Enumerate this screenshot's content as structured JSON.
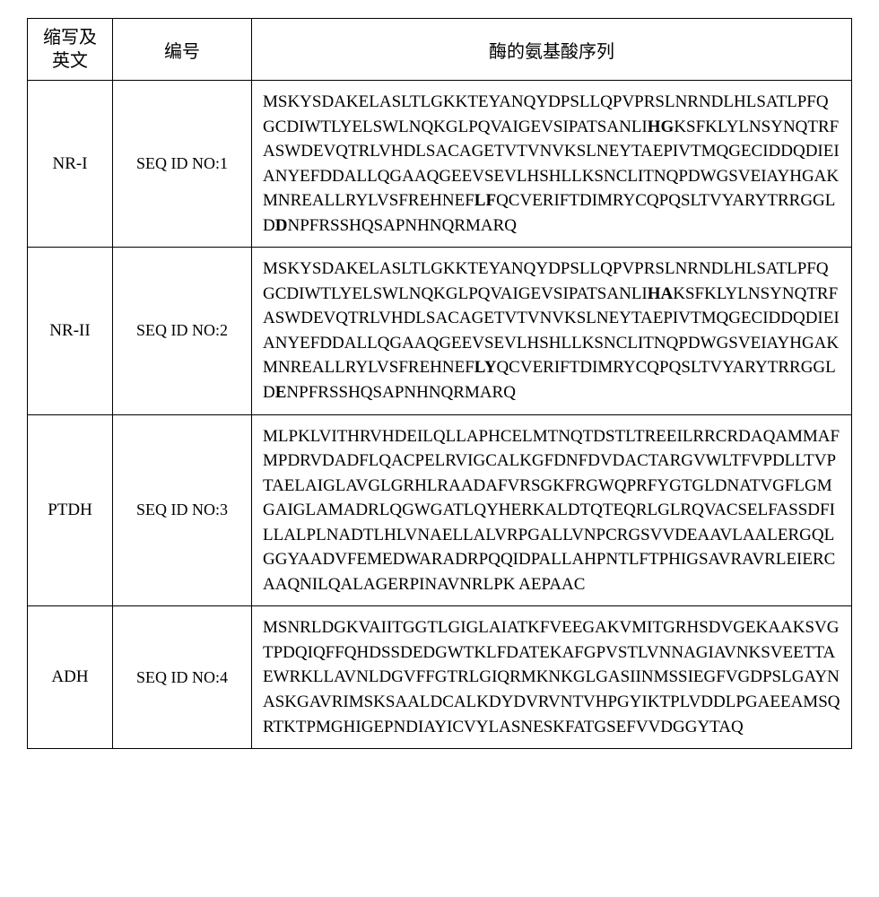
{
  "table": {
    "headers": {
      "abbr_line1": "缩写及",
      "abbr_line2": "英文",
      "id": "编号",
      "seq": "酶的氨基酸序列"
    },
    "rows": [
      {
        "abbr": "NR-I",
        "seq_id": "SEQ ID NO:1",
        "sequence_html": "MSKYSDAKELASLTLGKKTEYANQYDPSLLQPVPRSLNRNDLHLSATLPFQGCDIWTLYELSWLNQKGLPQVAIGEVSIPATSANLI<b>HG</b>KSFKLYLNSYNQTRFASWDEVQTRLVHDLSACAGETVTVNVKSLNEYTAEPIVTMQGECIDDQDIEIANYEFDDALLQGAAQGEEVSEVLHSHLLKSNCLITNQPDWGSVEIAYHGAKMNREALLRYLVSFREHNEF<b>LF</b>QCVERIFTDIMRYCQPQSLTVYARYTRRGGLD<b>D</b>NPFRSSHQSAPNHNQRMARQ"
      },
      {
        "abbr": "NR-II",
        "seq_id": "SEQ ID NO:2",
        "sequence_html": "MSKYSDAKELASLTLGKKTEYANQYDPSLLQPVPRSLNRNDLHLSATLPFQGCDIWTLYELSWLNQKGLPQVAIGEVSIPATSANLI<b>HA</b>KSFKLYLNSYNQTRFASWDEVQTRLVHDLSACAGETVTVNVKSLNEYTAEPIVTMQGECIDDQDIEIANYEFDDALLQGAAQGEEVSEVLHSHLLKSNCLITNQPDWGSVEIAYHGAKMNREALLRYLVSFREHNEF<b>LY</b>QCVERIFTDIMRYCQPQSLTVYARYTRRGGLD<b>E</b>NPFRSSHQSAPNHNQRMARQ"
      },
      {
        "abbr": "PTDH",
        "seq_id": "SEQ ID NO:3",
        "sequence_html": "MLPKLVITHRVHDEILQLLAPHCELMTNQTDSTLTREEILRRCRDAQAMMAFMPDRVDADFLQACPELRVIGCALKGFDNFDVDACTARGVWLTFVPDLLTVPTAELAIGLAVGLGRHLRAADAFVRSGKFRGWQPRFYGTGLDNATVGFLGMGAIGLAMADRLQGWGATLQYHERKALDTQTEQRLGLRQVACSELFASSDFILLALPLNADTLHLVNAELLALVRPGALLVNPCRGSVVDEAAVLAALERGQLGGYAADVFEMEDWARADRPQQIDPALLAHPNTLFTPHIGSAVRAVRLEIERCAAQNILQALAGERPINAVNRLPK AEPAAC"
      },
      {
        "abbr": "ADH",
        "seq_id": "SEQ ID NO:4",
        "sequence_html": "MSNRLDGKVAIITGGTLGIGLAIATKFVEEGAKVMITGRHSDVGEKAAKSVGTPDQIQFFQHDSSDEDGWTKLFDATEKAFGPVSTLVNNAGIAVNKSVEETTAEWRKLLAVNLDGVFFGTRLGIQRMKNKGLGASIINMSSIEGFVGDPSLGAYNASKGAVRIMSKSAALDCALKDYDVRVNTVHPGYIKTPLVDDLPGAEEAMSQRTKTPMGHIGEPNDIAYICVYLASNESKFATGSEFVVDGGYTAQ"
      }
    ],
    "column_widths": {
      "abbr": 95,
      "id": 155
    },
    "styling": {
      "border_color": "#000000",
      "border_width": 1.5,
      "background_color": "#ffffff",
      "text_color": "#000000",
      "header_font": "KaiTi",
      "body_font": "Times New Roman",
      "header_fontsize": 20,
      "cell_fontsize": 19,
      "line_height": 1.45
    }
  }
}
